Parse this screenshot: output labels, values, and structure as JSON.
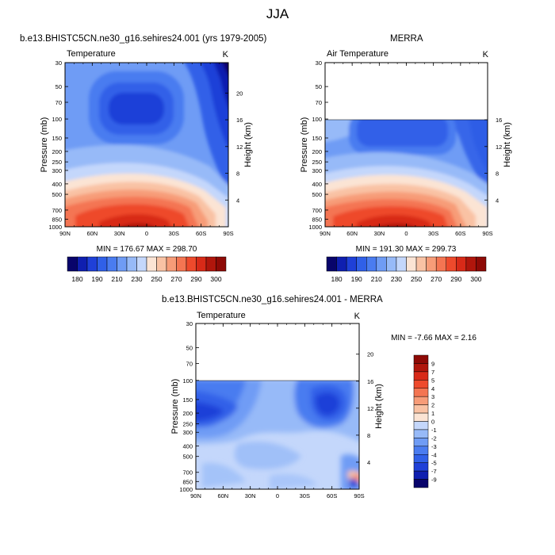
{
  "figure": {
    "title": "JJA"
  },
  "panels": [
    {
      "title": "b.e13.BHISTC5CN.ne30_g16.sehires24.001 (yrs 1979-2005)",
      "left_label": "Temperature",
      "right_label": "K",
      "stats": "MIN = 176.67  MAX = 298.70"
    },
    {
      "title": "MERRA",
      "left_label": "Air Temperature",
      "right_label": "K",
      "stats": "MIN = 191.30  MAX = 299.73"
    },
    {
      "title": "b.e13.BHISTC5CN.ne30_g16.sehires24.001 - MERRA",
      "left_label": "Temperature",
      "right_label": "K",
      "stats": "MIN =  -7.66  MAX =   2.16"
    }
  ],
  "chart_data": [
    {
      "type": "heatmap",
      "title": "b.e13.BHISTC5CN.ne30_g16.sehires24.001 (yrs 1979-2005)",
      "xlabel": "",
      "ylabel": "Pressure (mb)",
      "y2label": "Height (km)",
      "x_ticks": [
        "90N",
        "60N",
        "30N",
        "0",
        "30S",
        "60S",
        "90S"
      ],
      "y_ticks": [
        "30",
        "50",
        "70",
        "100",
        "150",
        "200",
        "250",
        "300",
        "400",
        "500",
        "700",
        "850",
        "1000"
      ],
      "y2_ticks": [
        "4",
        "8",
        "12",
        "16",
        "20"
      ],
      "ylim": [
        1000,
        30
      ],
      "y_scale": "log",
      "value_min": 176.67,
      "value_max": 298.7,
      "units": "K",
      "data_top_pressure": 30
    },
    {
      "type": "heatmap",
      "title": "MERRA",
      "xlabel": "",
      "ylabel": "Pressure (mb)",
      "y2label": "Height (km)",
      "x_ticks": [
        "90N",
        "60N",
        "30N",
        "0",
        "30S",
        "60S",
        "90S"
      ],
      "y_ticks": [
        "30",
        "50",
        "70",
        "100",
        "150",
        "200",
        "250",
        "300",
        "400",
        "500",
        "700",
        "850",
        "1000"
      ],
      "y2_ticks": [
        "4",
        "8",
        "12",
        "16"
      ],
      "ylim": [
        1000,
        30
      ],
      "y_scale": "log",
      "value_min": 191.3,
      "value_max": 299.73,
      "units": "K",
      "data_top_pressure": 100
    },
    {
      "type": "heatmap",
      "title": "b.e13.BHISTC5CN.ne30_g16.sehires24.001 - MERRA",
      "xlabel": "",
      "ylabel": "Pressure (mb)",
      "y2label": "Height (km)",
      "x_ticks": [
        "90N",
        "60N",
        "30N",
        "0",
        "30S",
        "60S",
        "90S"
      ],
      "y_ticks": [
        "30",
        "50",
        "70",
        "100",
        "150",
        "200",
        "250",
        "300",
        "400",
        "500",
        "700",
        "850",
        "1000"
      ],
      "y2_ticks": [
        "4",
        "8",
        "12",
        "16",
        "20"
      ],
      "ylim": [
        1000,
        30
      ],
      "y_scale": "log",
      "value_min": -7.66,
      "value_max": 2.16,
      "units": "K",
      "data_top_pressure": 100
    }
  ],
  "colorbars": [
    {
      "labels": [
        "180",
        "190",
        "210",
        "230",
        "250",
        "270",
        "290",
        "300"
      ],
      "colors": [
        "#08046b",
        "#0f1fb0",
        "#1f40d8",
        "#3060e8",
        "#4a7cf0",
        "#6f9cf5",
        "#97baf8",
        "#c4d7fb",
        "#fbe4d4",
        "#f9c2a4",
        "#f79c78",
        "#f47552",
        "#ee4a2c",
        "#d82a18",
        "#b0160c",
        "#8e0a06"
      ]
    },
    {
      "labels": [
        "180",
        "190",
        "210",
        "230",
        "250",
        "270",
        "290",
        "300"
      ],
      "colors": [
        "#08046b",
        "#0f1fb0",
        "#1f40d8",
        "#3060e8",
        "#4a7cf0",
        "#6f9cf5",
        "#97baf8",
        "#c4d7fb",
        "#fbe4d4",
        "#f9c2a4",
        "#f79c78",
        "#f47552",
        "#ee4a2c",
        "#d82a18",
        "#b0160c",
        "#8e0a06"
      ]
    },
    {
      "labels": [
        "9",
        "7",
        "5",
        "4",
        "3",
        "2",
        "1",
        "0",
        "-1",
        "-2",
        "-3",
        "-4",
        "-5",
        "-7",
        "-9"
      ],
      "colors": [
        "#8e0a06",
        "#b0160c",
        "#d82a18",
        "#ee4a2c",
        "#f47552",
        "#f79c78",
        "#f9c2a4",
        "#fbe4d4",
        "#c4d7fb",
        "#97baf8",
        "#6f9cf5",
        "#4a7cf0",
        "#3060e8",
        "#1f40d8",
        "#0f1fb0",
        "#08046b"
      ]
    }
  ]
}
